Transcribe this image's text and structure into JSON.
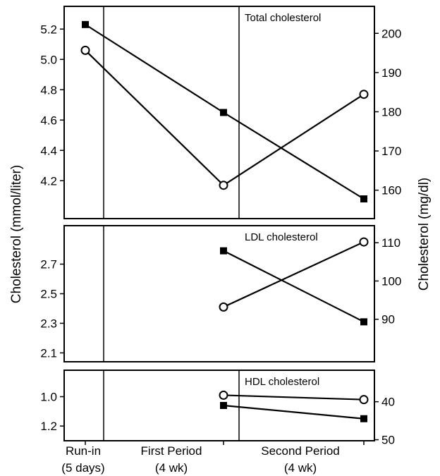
{
  "chart_data": {
    "type": "line",
    "y_left_label": "Cholesterol (mmol/liter)",
    "y_right_label": "Cholesterol (mg/dl)",
    "x_categories": [
      {
        "line1": "Run-in",
        "line2": "(5 days)"
      },
      {
        "line1": "First Period",
        "line2": "(4 wk)"
      },
      {
        "line1": "Second Period",
        "line2": "(4 wk)"
      }
    ],
    "panels": [
      {
        "title": "Total cholesterol",
        "ylim_left": [
          3.95,
          5.35
        ],
        "left_ticks": [
          "4.2",
          "4.4",
          "4.6",
          "4.8",
          "5.0",
          "5.2"
        ],
        "right_ticks": [
          "160",
          "170",
          "180",
          "190",
          "200"
        ],
        "series": [
          {
            "marker": "square-filled",
            "points": [
              {
                "x": 0,
                "y": 5.23
              },
              {
                "x": 1,
                "y": 4.65
              },
              {
                "x": 2,
                "y": 4.08
              }
            ]
          },
          {
            "marker": "circle-open",
            "points": [
              {
                "x": 0,
                "y": 5.06
              },
              {
                "x": 1,
                "y": 4.17
              },
              {
                "x": 2,
                "y": 4.77
              }
            ]
          }
        ]
      },
      {
        "title": "LDL cholesterol",
        "ylim_left": [
          2.04,
          2.96
        ],
        "left_ticks": [
          "2.1",
          "2.3",
          "2.5",
          "2.7"
        ],
        "right_ticks": [
          "90",
          "100",
          "110"
        ],
        "series": [
          {
            "marker": "square-filled",
            "points": [
              {
                "x": 1,
                "y": 2.79
              },
              {
                "x": 2,
                "y": 2.31
              }
            ]
          },
          {
            "marker": "circle-open",
            "points": [
              {
                "x": 1,
                "y": 2.41
              },
              {
                "x": 2,
                "y": 2.85
              }
            ]
          }
        ]
      },
      {
        "title": "HDL cholesterol",
        "ylim_left": [
          1.3,
          0.82
        ],
        "left_ticks": [
          "1.0",
          "1.2"
        ],
        "right_ticks": [
          "40",
          "50"
        ],
        "series": [
          {
            "marker": "circle-open",
            "points": [
              {
                "x": 1,
                "y": 0.99
              },
              {
                "x": 2,
                "y": 1.02
              }
            ]
          },
          {
            "marker": "square-filled",
            "points": [
              {
                "x": 1,
                "y": 1.06
              },
              {
                "x": 2,
                "y": 1.15
              }
            ]
          }
        ]
      }
    ]
  }
}
